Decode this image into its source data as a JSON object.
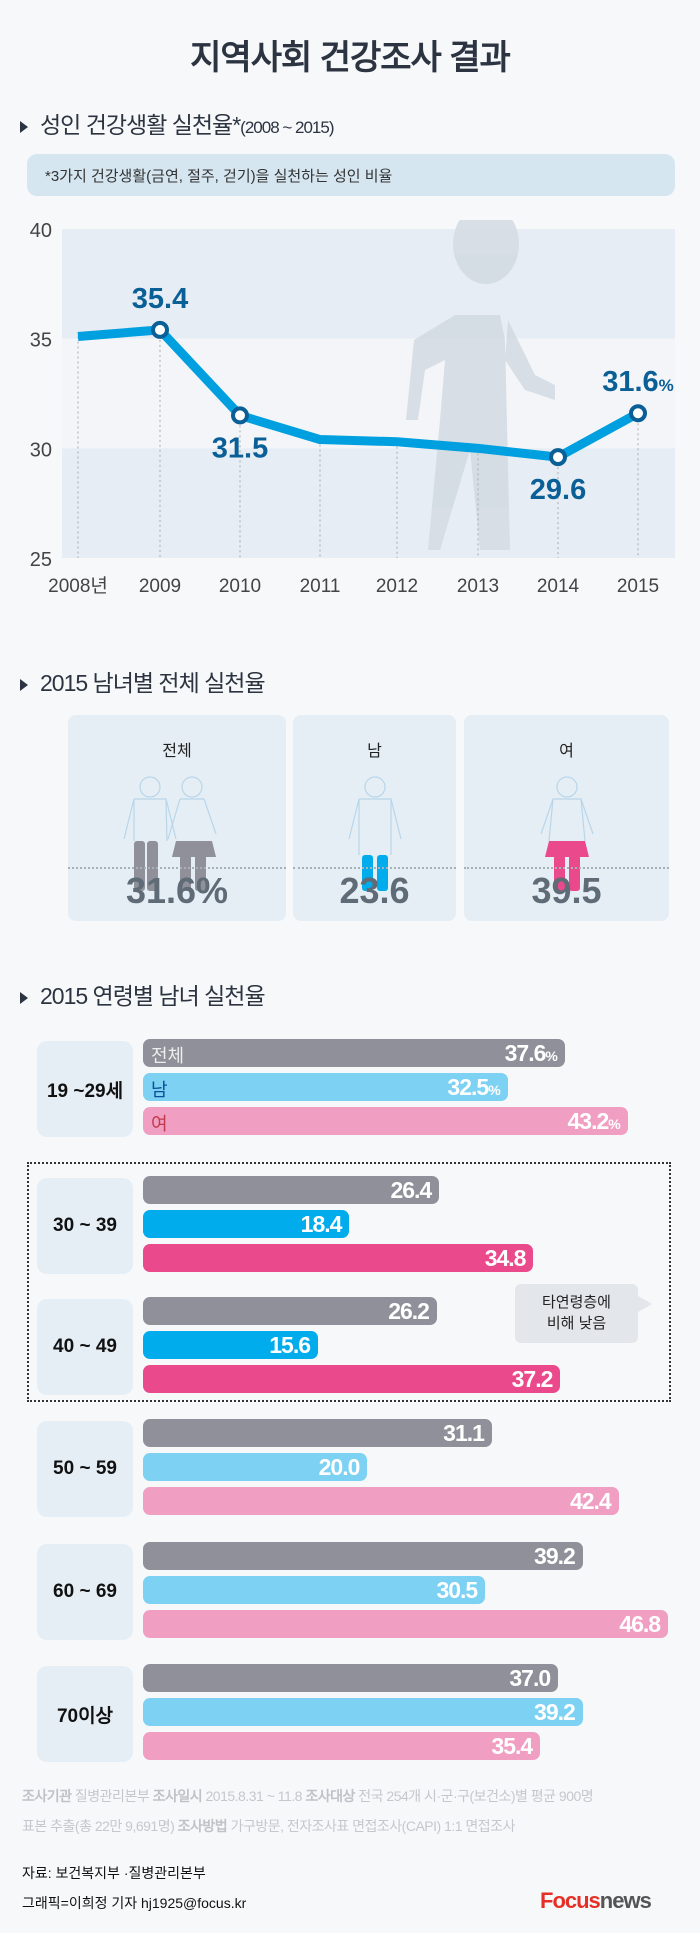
{
  "title": "지역사회 건강조사 결과",
  "section1": {
    "title": "성인 건강생활 실천율*",
    "range": "(2008 ~ 2015)",
    "note": "*3가지 건강생활(금연, 절주, 걷기)을 실천하는 성인 비율"
  },
  "chart_data": {
    "type": "line",
    "title": "성인 건강생활 실천율*(2008 ~ 2015)",
    "x": [
      "2008년",
      "2009",
      "2010",
      "2011",
      "2012",
      "2013",
      "2014",
      "2015"
    ],
    "values": [
      35.1,
      35.4,
      31.5,
      30.4,
      30.3,
      30.0,
      29.6,
      31.6
    ],
    "data_labels": {
      "2009": "35.4",
      "2010": "31.5",
      "2014": "29.6",
      "2015": "31.6"
    },
    "label_suffix": "%",
    "yticks": [
      "40",
      "35",
      "30",
      "25"
    ],
    "ylim": [
      25,
      40
    ],
    "color": "#009fdf",
    "marker_color": "#0a5f96"
  },
  "section2": {
    "title": "2015 남녀별 전체 실천율",
    "cards": [
      {
        "label": "전체",
        "value": "31.6%"
      },
      {
        "label": "남",
        "value": "23.6"
      },
      {
        "label": "여",
        "value": "39.5"
      }
    ]
  },
  "section3": {
    "title": "2015 연령별 남녀 실천율",
    "series_labels": [
      "전체",
      "남",
      "여"
    ],
    "colors": {
      "total": "#8f9099",
      "male_light": "#7dd1f3",
      "female_light": "#f09fc3",
      "male_strong": "#00acec",
      "female_strong": "#ea4a8b"
    },
    "groups": [
      {
        "label": "19 ~29세",
        "values": [
          37.6,
          32.5,
          43.2
        ],
        "texts": [
          "37.6",
          "32.5",
          "43.2"
        ],
        "pct": true,
        "strong": false
      },
      {
        "label": "30 ~ 39",
        "values": [
          26.4,
          18.4,
          34.8
        ],
        "texts": [
          "26.4",
          "18.4",
          "34.8"
        ],
        "pct": false,
        "strong": true
      },
      {
        "label": "40 ~ 49",
        "values": [
          26.2,
          15.6,
          37.2
        ],
        "texts": [
          "26.2",
          "15.6",
          "37.2"
        ],
        "pct": false,
        "strong": true
      },
      {
        "label": "50 ~ 59",
        "values": [
          31.1,
          20.0,
          42.4
        ],
        "texts": [
          "31.1",
          "20.0",
          "42.4"
        ],
        "pct": false,
        "strong": false
      },
      {
        "label": "60 ~ 69",
        "values": [
          39.2,
          30.5,
          46.8
        ],
        "texts": [
          "39.2",
          "30.5",
          "46.8"
        ],
        "pct": false,
        "strong": false
      },
      {
        "label": "70이상",
        "values": [
          37.0,
          39.2,
          35.4
        ],
        "texts": [
          "37.0",
          "39.2",
          "35.4"
        ],
        "pct": false,
        "strong": false
      }
    ],
    "callout_line1": "타연령층에",
    "callout_line2": "비해 낮음"
  },
  "footer": {
    "k1": "조사기관",
    "v1": "질병관리본부",
    "k2": "조사일시",
    "v2": "2015.8.31 ~ 11.8",
    "k3": "조사대상",
    "v3": "전국 254개 시·군·구(보건소)별 평균 900명",
    "v3b": "표본 추출(총 22만 9,691명)",
    "k4": "조사방법",
    "v4": "가구방문, 전자조사표 면접조사(CAPI) 1:1 면접조사",
    "source": "자료: 보건복지부 ·질병관리본부",
    "credit": "그래픽=이희정 기자 hj1925@focus.kr",
    "logo_a": "Focus",
    "logo_b": "news"
  }
}
